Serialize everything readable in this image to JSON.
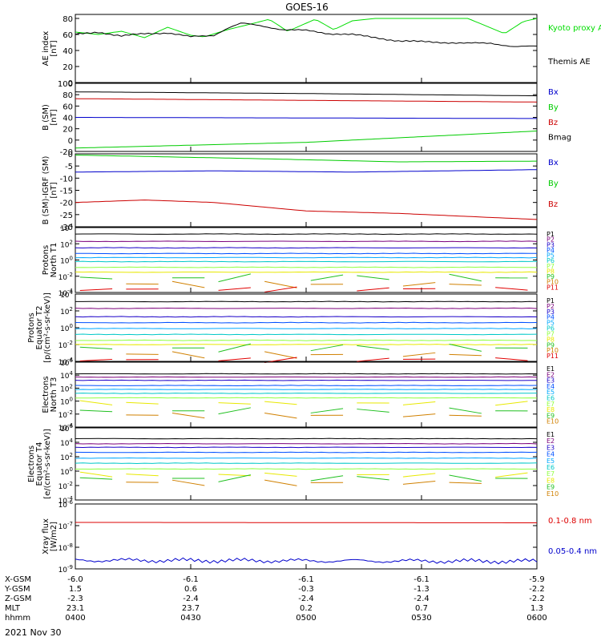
{
  "title": "GOES-16",
  "x_axis_rows": [
    {
      "label": "X-GSM",
      "values": [
        "-6.0",
        "-6.1",
        "-6.1",
        "-6.1",
        "-5.9"
      ]
    },
    {
      "label": "Y-GSM",
      "values": [
        "1.5",
        "0.6",
        "-0.3",
        "-1.3",
        "-2.2"
      ]
    },
    {
      "label": "Z-GSM",
      "values": [
        "-2.3",
        "-2.4",
        "-2.4",
        "-2.4",
        "-2.2"
      ]
    },
    {
      "label": "MLT",
      "values": [
        "23.1",
        "23.7",
        "0.2",
        "0.7",
        "1.3"
      ]
    },
    {
      "label": "hhmm",
      "values": [
        "0400",
        "0430",
        "0500",
        "0530",
        "0600"
      ]
    }
  ],
  "date": "2021 Nov 30",
  "colors": {
    "P1": "#000000",
    "P2": "#7b007b",
    "P3": "#1a00c8",
    "P4": "#0050ff",
    "P5": "#00a8ff",
    "P6": "#00c8c8",
    "P7": "#90ff40",
    "P8": "#e8e800",
    "P9": "#20c020",
    "P10": "#d08000",
    "P11": "#e00000"
  },
  "chart_data": [
    {
      "id": "ae",
      "type": "line",
      "ylabel": [
        "AE index",
        "[nT]"
      ],
      "ylim": [
        0,
        85
      ],
      "yticks": [
        "0",
        "20",
        "40",
        "60",
        "80"
      ],
      "yscale": "linear",
      "series": [
        {
          "name": "Kyoto proxy AE",
          "color": "#00dd00",
          "x": [
            0,
            0.05,
            0.1,
            0.15,
            0.2,
            0.25,
            0.28,
            0.33,
            0.38,
            0.42,
            0.46,
            0.52,
            0.56,
            0.6,
            0.65,
            0.7,
            0.75,
            0.8,
            0.85,
            0.88,
            0.93,
            0.97,
            1
          ],
          "y": [
            63,
            60,
            64,
            56,
            69,
            59,
            57,
            66,
            73,
            79,
            64,
            79,
            66,
            77,
            80,
            80,
            80,
            80,
            80,
            73,
            61,
            76,
            80
          ]
        },
        {
          "name": "Themis AE",
          "color": "#000000",
          "x": [
            0,
            0.05,
            0.1,
            0.15,
            0.2,
            0.25,
            0.3,
            0.33,
            0.36,
            0.4,
            0.45,
            0.5,
            0.55,
            0.6,
            0.65,
            0.7,
            0.75,
            0.8,
            0.85,
            0.9,
            0.95,
            1
          ],
          "y": [
            60,
            63,
            58,
            61,
            62,
            57,
            59,
            68,
            74,
            71,
            66,
            65,
            61,
            60,
            56,
            52,
            51,
            50,
            49,
            49,
            45,
            45
          ]
        }
      ]
    },
    {
      "id": "bsm",
      "type": "line",
      "ylabel": [
        "B (SM)",
        "[nT]"
      ],
      "ylim": [
        -20,
        100
      ],
      "yticks": [
        "-20",
        "0",
        "20",
        "40",
        "60",
        "80",
        "100"
      ],
      "yscale": "linear",
      "series": [
        {
          "name": "Bx",
          "color": "#0000cc",
          "x": [
            0,
            1
          ],
          "y": [
            40,
            38
          ]
        },
        {
          "name": "By",
          "color": "#00cc00",
          "x": [
            0,
            0.5,
            1
          ],
          "y": [
            -14,
            -4,
            16
          ]
        },
        {
          "name": "Bz",
          "color": "#cc0000",
          "x": [
            0,
            0.5,
            1
          ],
          "y": [
            73,
            70,
            67
          ]
        },
        {
          "name": "Bmag",
          "color": "#000000",
          "x": [
            0,
            0.5,
            1
          ],
          "y": [
            85,
            82,
            78
          ]
        }
      ]
    },
    {
      "id": "bigrf",
      "type": "line",
      "ylabel": [
        "B (SM)-IGRF (SM)",
        "[nT]"
      ],
      "ylim": [
        -30,
        0
      ],
      "yticks": [
        "-30",
        "-25",
        "-20",
        "-15",
        "-10",
        "-5",
        "0"
      ],
      "yscale": "linear",
      "series": [
        {
          "name": "Bx",
          "color": "#0000cc",
          "x": [
            0,
            0.3,
            0.6,
            1
          ],
          "y": [
            -7.5,
            -7,
            -7.5,
            -6.5
          ]
        },
        {
          "name": "By",
          "color": "#00cc00",
          "x": [
            0,
            0.4,
            0.7,
            1
          ],
          "y": [
            -0.5,
            -2,
            -3.3,
            -3
          ]
        },
        {
          "name": "Bz",
          "color": "#cc0000",
          "x": [
            0,
            0.15,
            0.3,
            0.5,
            0.7,
            1
          ],
          "y": [
            -20,
            -19,
            -20,
            -23.5,
            -24.5,
            -27
          ]
        }
      ]
    },
    {
      "id": "pn",
      "type": "line",
      "ylabel": [
        "Protons",
        "North T1"
      ],
      "ylim": [
        -4,
        4
      ],
      "yticks": [
        "10^-4",
        "10^-2",
        "10^0",
        "10^2",
        "10^4"
      ],
      "yscale": "log",
      "legend": [
        "P1",
        "P2",
        "P3",
        "P4",
        "P5",
        "P6",
        "P7",
        "P8",
        "P9",
        "P10",
        "P11"
      ],
      "levels": [
        3.2,
        2.3,
        1.5,
        0.8,
        0.3,
        -0.2,
        -0.9,
        -1.5,
        -2.2,
        -3.0,
        -3.6
      ]
    },
    {
      "id": "pe",
      "type": "line",
      "ylabel": [
        "Protons",
        "Equator T2",
        "[p/(cm²-s-sr-keV)]"
      ],
      "ylim": [
        -4,
        4
      ],
      "yticks": [
        "10^-4",
        "10^-2",
        "10^0",
        "10^2",
        "10^4"
      ],
      "yscale": "log",
      "legend": [
        "P1",
        "P2",
        "P3",
        "P4",
        "P5",
        "P6",
        "P7",
        "P8",
        "P9",
        "P10",
        "P11"
      ],
      "levels": [
        3.1,
        2.3,
        1.3,
        0.6,
        -0.1,
        -0.8,
        -1.5,
        -2.0,
        -2.4,
        -3.2,
        -3.8
      ]
    },
    {
      "id": "en",
      "type": "line",
      "ylabel": [
        "Electrons",
        "North T3"
      ],
      "ylim": [
        -4,
        6
      ],
      "yticks": [
        "10^-4",
        "10^-2",
        "10^0",
        "10^2",
        "10^4",
        "10^6"
      ],
      "yscale": "log",
      "legend": [
        "E1",
        "E2",
        "E3",
        "E4",
        "E5",
        "E6",
        "E7",
        "E8",
        "E9",
        "E10"
      ],
      "levels": [
        4.2,
        3.7,
        3.2,
        2.4,
        1.8,
        1.2,
        0.5,
        -0.3,
        -1.5,
        -2.2
      ]
    },
    {
      "id": "ee",
      "type": "line",
      "ylabel": [
        "Electrons",
        "Equator T4",
        "[e/(cm²-s-sr-keV)]"
      ],
      "ylim": [
        -4,
        6
      ],
      "yticks": [
        "10^-4",
        "10^-2",
        "10^0",
        "10^2",
        "10^4",
        "10^6"
      ],
      "yscale": "log",
      "legend": [
        "E1",
        "E2",
        "E3",
        "E4",
        "E5",
        "E6",
        "E7",
        "E8",
        "E9",
        "E10"
      ],
      "levels": [
        4.5,
        3.8,
        3.3,
        2.6,
        1.8,
        1.1,
        0.3,
        -0.5,
        -1.0,
        -1.6
      ]
    },
    {
      "id": "xray",
      "type": "line",
      "ylabel": [
        "Xray flux",
        "[W/m2]"
      ],
      "ylim": [
        -9,
        -6
      ],
      "yticks": [
        "10^-9",
        "10^-8",
        "10^-7",
        "10^-6"
      ],
      "yscale": "log",
      "series": [
        {
          "name": "0.1-0.8 nm",
          "color": "#dd0000",
          "x": [
            0,
            1
          ],
          "y": [
            -6.85,
            -6.87
          ]
        },
        {
          "name": "0.05-0.4 nm",
          "color": "#0000cc",
          "x": [
            0,
            1
          ],
          "y": [
            -8.6,
            -8.65
          ]
        }
      ]
    }
  ]
}
